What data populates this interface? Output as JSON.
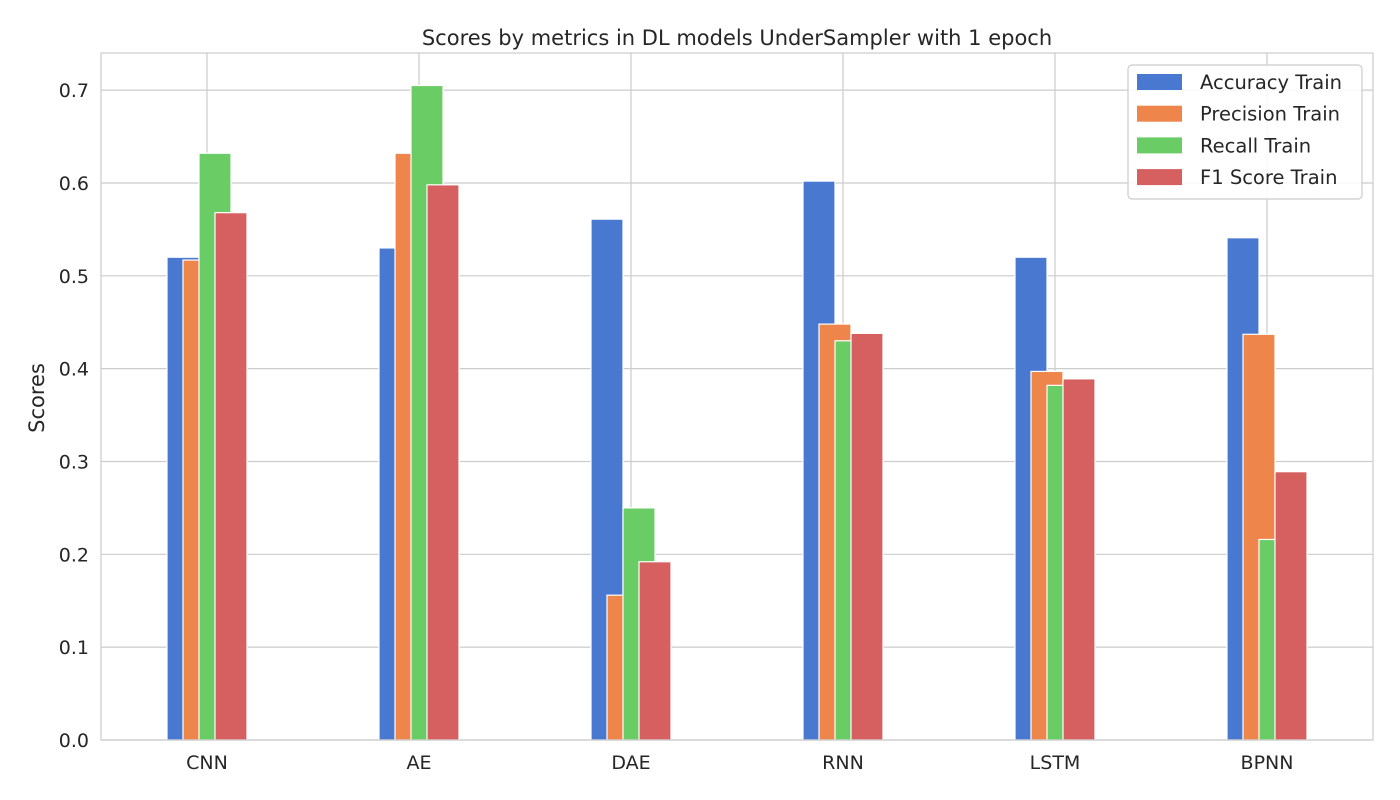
{
  "chart_data": {
    "type": "bar",
    "title": "Scores by metrics in DL models UnderSampler with 1 epoch",
    "xlabel": "",
    "ylabel": "Scores",
    "ylim": [
      0,
      0.74
    ],
    "yticks": [
      "0.0",
      "0.1",
      "0.2",
      "0.3",
      "0.4",
      "0.5",
      "0.6",
      "0.7"
    ],
    "grid": true,
    "legend_position": "top-right",
    "categories": [
      "CNN",
      "AE",
      "DAE",
      "RNN",
      "LSTM",
      "BPNN"
    ],
    "series": [
      {
        "name": "Accuracy Train",
        "color": "#4878d0",
        "values": [
          0.52,
          0.53,
          0.561,
          0.602,
          0.52,
          0.541
        ]
      },
      {
        "name": "Precision Train",
        "color": "#ee854a",
        "values": [
          0.517,
          0.632,
          0.156,
          0.448,
          0.397,
          0.437
        ]
      },
      {
        "name": "Recall Train",
        "color": "#6acc64",
        "values": [
          0.632,
          0.705,
          0.25,
          0.43,
          0.382,
          0.216
        ]
      },
      {
        "name": "F1 Score Train",
        "color": "#d65f5f",
        "values": [
          0.568,
          0.598,
          0.192,
          0.438,
          0.389,
          0.289
        ]
      }
    ]
  }
}
